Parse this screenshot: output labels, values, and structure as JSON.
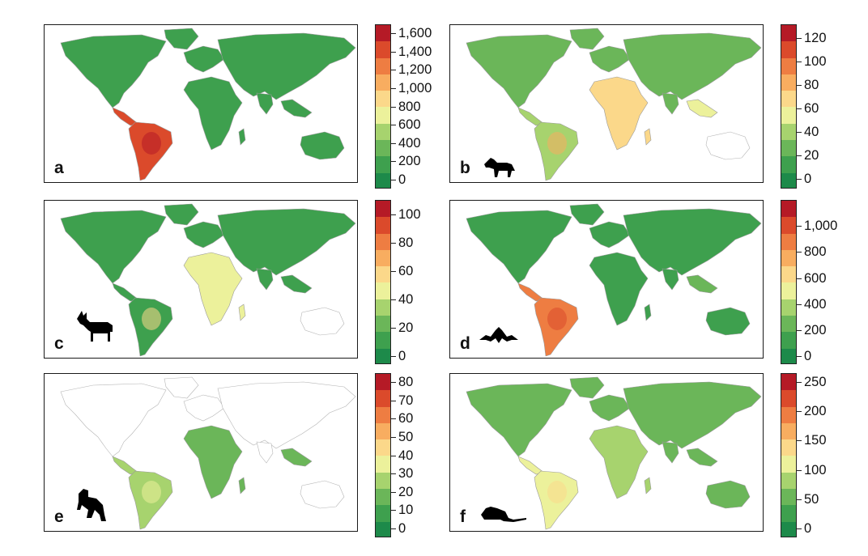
{
  "panels": [
    {
      "id": "a",
      "letter": "a",
      "taxon": "",
      "ramp": [
        "#1d8a4a",
        "#3ea04e",
        "#6bb659",
        "#a7d36e",
        "#ecf19b",
        "#fbd88a",
        "#f8ad60",
        "#ee7d42",
        "#db4a2b",
        "#b51a26"
      ],
      "region_levels": {
        "northamerica": 1,
        "southamerica": 8,
        "europe": 1,
        "africa": 1,
        "asia": 1,
        "seasia": 1,
        "australia": 1
      },
      "colorbar": {
        "ticks": [
          {
            "value": 0,
            "label": "0"
          },
          {
            "value": 200,
            "label": "200"
          },
          {
            "value": 400,
            "label": "400"
          },
          {
            "value": 600,
            "label": "600"
          },
          {
            "value": 800,
            "label": "800"
          },
          {
            "value": 1000,
            "label": "1,000"
          },
          {
            "value": 1200,
            "label": "1,200"
          },
          {
            "value": 1400,
            "label": "1,400"
          },
          {
            "value": 1600,
            "label": "1,600"
          }
        ],
        "min": -100,
        "max": 1700
      }
    },
    {
      "id": "b",
      "letter": "b",
      "taxon": "carnivore-silhouette",
      "ramp": [
        "#1d8a4a",
        "#3ea04e",
        "#6bb659",
        "#a7d36e",
        "#ecf19b",
        "#fbd88a",
        "#f8ad60",
        "#ee7d42",
        "#db4a2b",
        "#b51a26"
      ],
      "region_levels": {
        "northamerica": 2,
        "southamerica": 3,
        "europe": 2,
        "africa": 5,
        "asia": 2,
        "seasia": 4,
        "australia": -1
      },
      "colorbar": {
        "ticks": [
          {
            "value": 0,
            "label": "0"
          },
          {
            "value": 20,
            "label": "20"
          },
          {
            "value": 40,
            "label": "40"
          },
          {
            "value": 60,
            "label": "60"
          },
          {
            "value": 80,
            "label": "80"
          },
          {
            "value": 100,
            "label": "100"
          },
          {
            "value": 120,
            "label": "120"
          }
        ],
        "min": -8,
        "max": 132
      }
    },
    {
      "id": "c",
      "letter": "c",
      "taxon": "ungulate-silhouette",
      "ramp": [
        "#1d8a4a",
        "#3ea04e",
        "#6bb659",
        "#a7d36e",
        "#ecf19b",
        "#fbd88a",
        "#f8ad60",
        "#ee7d42",
        "#db4a2b",
        "#b51a26"
      ],
      "region_levels": {
        "northamerica": 1,
        "southamerica": 1,
        "europe": 1,
        "africa": 4,
        "asia": 1,
        "seasia": 1,
        "australia": -1
      },
      "colorbar": {
        "ticks": [
          {
            "value": 0,
            "label": "0"
          },
          {
            "value": 20,
            "label": "20"
          },
          {
            "value": 40,
            "label": "40"
          },
          {
            "value": 60,
            "label": "60"
          },
          {
            "value": 80,
            "label": "80"
          },
          {
            "value": 100,
            "label": "100"
          }
        ],
        "min": -6,
        "max": 110
      }
    },
    {
      "id": "d",
      "letter": "d",
      "taxon": "bat-silhouette",
      "ramp": [
        "#1d8a4a",
        "#3ea04e",
        "#6bb659",
        "#a7d36e",
        "#ecf19b",
        "#fbd88a",
        "#f8ad60",
        "#ee7d42",
        "#db4a2b",
        "#b51a26"
      ],
      "region_levels": {
        "northamerica": 1,
        "southamerica": 7,
        "europe": 1,
        "africa": 1,
        "asia": 1,
        "seasia": 2,
        "australia": 1
      },
      "colorbar": {
        "ticks": [
          {
            "value": 0,
            "label": "0"
          },
          {
            "value": 200,
            "label": "200"
          },
          {
            "value": 400,
            "label": "400"
          },
          {
            "value": 600,
            "label": "600"
          },
          {
            "value": 800,
            "label": "800"
          },
          {
            "value": 1000,
            "label": "1,000"
          }
        ],
        "min": -60,
        "max": 1200
      }
    },
    {
      "id": "e",
      "letter": "e",
      "taxon": "primate-silhouette",
      "ramp": [
        "#1d8a4a",
        "#3ea04e",
        "#6bb659",
        "#a7d36e",
        "#ecf19b",
        "#fbd88a",
        "#f8ad60",
        "#ee7d42",
        "#db4a2b",
        "#b51a26"
      ],
      "region_levels": {
        "northamerica": -1,
        "southamerica": 3,
        "europe": -1,
        "africa": 2,
        "asia": -1,
        "seasia": 2,
        "australia": -1
      },
      "colorbar": {
        "ticks": [
          {
            "value": 0,
            "label": "0"
          },
          {
            "value": 10,
            "label": "10"
          },
          {
            "value": 20,
            "label": "20"
          },
          {
            "value": 30,
            "label": "30"
          },
          {
            "value": 40,
            "label": "40"
          },
          {
            "value": 50,
            "label": "50"
          },
          {
            "value": 60,
            "label": "60"
          },
          {
            "value": 70,
            "label": "70"
          },
          {
            "value": 80,
            "label": "80"
          }
        ],
        "min": -5,
        "max": 85
      }
    },
    {
      "id": "f",
      "letter": "f",
      "taxon": "rodent-silhouette",
      "ramp": [
        "#1d8a4a",
        "#3ea04e",
        "#6bb659",
        "#a7d36e",
        "#ecf19b",
        "#fbd88a",
        "#f8ad60",
        "#ee7d42",
        "#db4a2b",
        "#b51a26"
      ],
      "region_levels": {
        "northamerica": 2,
        "southamerica": 4,
        "europe": 2,
        "africa": 3,
        "asia": 2,
        "seasia": 2,
        "australia": 2
      },
      "colorbar": {
        "ticks": [
          {
            "value": 0,
            "label": "0"
          },
          {
            "value": 50,
            "label": "50"
          },
          {
            "value": 100,
            "label": "100"
          },
          {
            "value": 150,
            "label": "150"
          },
          {
            "value": 200,
            "label": "200"
          },
          {
            "value": 250,
            "label": "250"
          }
        ],
        "min": -15,
        "max": 265
      }
    }
  ]
}
